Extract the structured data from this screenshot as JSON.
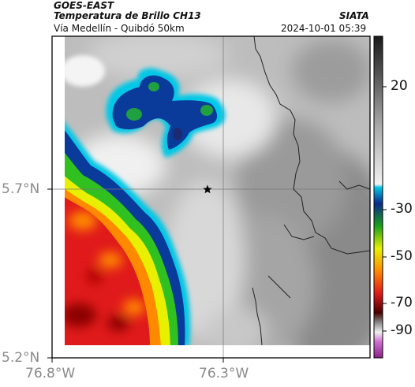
{
  "header": {
    "satellite": "GOES-EAST",
    "product": "Temperatura de Brillo CH13",
    "region": "Vía Medellín - Quibdó 50km",
    "organization": "SIATA",
    "datetime": "2024-10-01 05:39"
  },
  "axes": {
    "lat_labels": [
      "5.7°N",
      "5.2°N"
    ],
    "lon_labels": [
      "76.8°W",
      "76.3°W"
    ]
  },
  "colorbar": {
    "tick_labels": [
      "20",
      "-30",
      "-50",
      "-70",
      "-90"
    ],
    "colors": [
      "#2b2b2b",
      "#f2f2f2",
      "#00c8e6",
      "#0a2a8a",
      "#1aa01a",
      "#f0f000",
      "#e01a1a",
      "#4a0000",
      "#c040c0"
    ]
  },
  "map": {
    "marker": "star-icon",
    "colors": {
      "cloud_top_red": "#e01a1a",
      "cloud_top_orange": "#ff8a00",
      "cloud_top_yellow": "#e8f000",
      "cloud_top_green": "#30c020",
      "cloud_top_blue": "#0a3a9a",
      "cloud_top_cyan": "#00c8e6",
      "clear_gray": "#8a8a8a",
      "border": "#222222"
    }
  }
}
